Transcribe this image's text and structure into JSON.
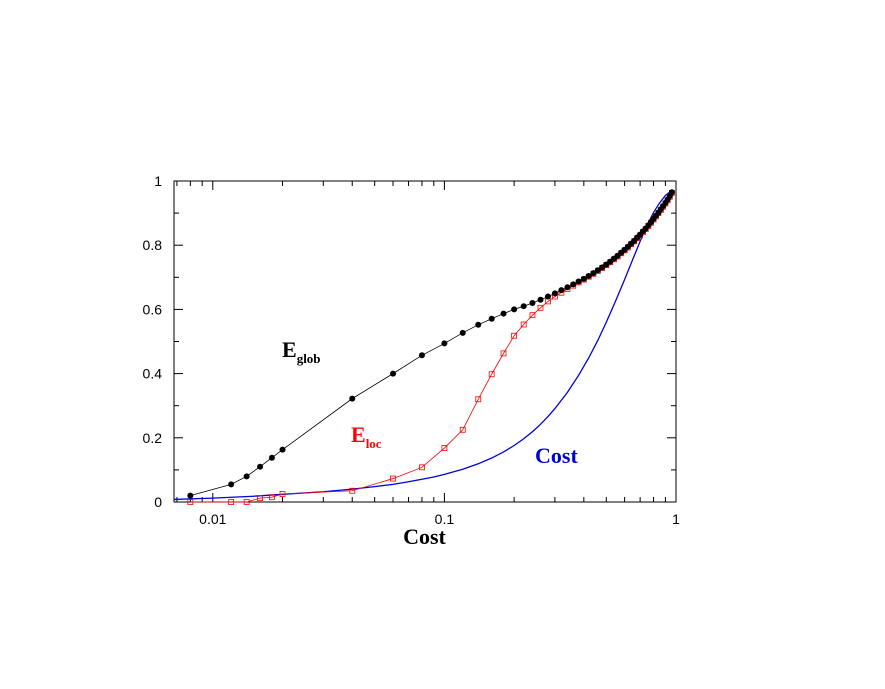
{
  "chart_data": {
    "type": "line",
    "xlabel": "Cost",
    "ylabel": "",
    "xscale": "log",
    "xlim": [
      0.0068,
      1.0
    ],
    "ylim": [
      0,
      1
    ],
    "x_ticks": [
      {
        "value": 0.01,
        "label": "0.01"
      },
      {
        "value": 0.1,
        "label": "0.1"
      },
      {
        "value": 1,
        "label": "1"
      }
    ],
    "y_ticks": [
      {
        "value": 0,
        "label": "0"
      },
      {
        "value": 0.2,
        "label": "0.2"
      },
      {
        "value": 0.4,
        "label": "0.4"
      },
      {
        "value": 0.6,
        "label": "0.6"
      },
      {
        "value": 0.8,
        "label": "0.8"
      },
      {
        "value": 1,
        "label": "1"
      }
    ],
    "grid": false,
    "series": [
      {
        "name": "E_glob",
        "label_main": "E",
        "label_sub": "glob",
        "color": "#000000",
        "marker": "filled-circle",
        "x": [
          0.008,
          0.012,
          0.014,
          0.016,
          0.018,
          0.02,
          0.04,
          0.06,
          0.08,
          0.1,
          0.12,
          0.14,
          0.16,
          0.18,
          0.2,
          0.22,
          0.24,
          0.26,
          0.28,
          0.3,
          0.32,
          0.34,
          0.36,
          0.38,
          0.4,
          0.42,
          0.44,
          0.46,
          0.48,
          0.5,
          0.52,
          0.54,
          0.56,
          0.58,
          0.6,
          0.62,
          0.64,
          0.66,
          0.68,
          0.7,
          0.72,
          0.74,
          0.76,
          0.78,
          0.8,
          0.82,
          0.84,
          0.86,
          0.88,
          0.9,
          0.92,
          0.94,
          0.96
        ],
        "y": [
          0.02,
          0.055,
          0.08,
          0.11,
          0.138,
          0.163,
          0.322,
          0.4,
          0.457,
          0.494,
          0.527,
          0.552,
          0.571,
          0.587,
          0.6,
          0.61,
          0.62,
          0.63,
          0.64,
          0.65,
          0.66,
          0.669,
          0.678,
          0.687,
          0.695,
          0.704,
          0.713,
          0.722,
          0.731,
          0.74,
          0.749,
          0.758,
          0.767,
          0.777,
          0.786,
          0.795,
          0.805,
          0.814,
          0.824,
          0.833,
          0.843,
          0.852,
          0.862,
          0.872,
          0.882,
          0.892,
          0.902,
          0.912,
          0.922,
          0.932,
          0.942,
          0.953,
          0.965
        ]
      },
      {
        "name": "E_loc",
        "label_main": "E",
        "label_sub": "loc",
        "color": "#ff0000",
        "marker": "open-square",
        "x": [
          0.008,
          0.012,
          0.014,
          0.016,
          0.018,
          0.02,
          0.04,
          0.06,
          0.08,
          0.1,
          0.12,
          0.14,
          0.16,
          0.18,
          0.2,
          0.22,
          0.24,
          0.26,
          0.28,
          0.3,
          0.32,
          0.34,
          0.36,
          0.38,
          0.4,
          0.42,
          0.44,
          0.46,
          0.48,
          0.5,
          0.52,
          0.54,
          0.56,
          0.58,
          0.6,
          0.62,
          0.64,
          0.66,
          0.68,
          0.7,
          0.72,
          0.74,
          0.76,
          0.78,
          0.8,
          0.82,
          0.84,
          0.86,
          0.88,
          0.9,
          0.92,
          0.94,
          0.96
        ],
        "y": [
          0.0,
          0.0,
          0.0,
          0.012,
          0.015,
          0.025,
          0.035,
          0.073,
          0.108,
          0.168,
          0.225,
          0.32,
          0.398,
          0.463,
          0.518,
          0.553,
          0.582,
          0.605,
          0.625,
          0.64,
          0.652,
          0.664,
          0.674,
          0.684,
          0.693,
          0.702,
          0.711,
          0.72,
          0.729,
          0.738,
          0.747,
          0.756,
          0.765,
          0.775,
          0.784,
          0.793,
          0.803,
          0.812,
          0.822,
          0.831,
          0.841,
          0.85,
          0.86,
          0.87,
          0.88,
          0.89,
          0.9,
          0.91,
          0.92,
          0.93,
          0.94,
          0.951,
          0.963
        ]
      },
      {
        "name": "Cost",
        "label_main": "Cost",
        "color": "#0000dd",
        "marker": "none",
        "x": [
          0.0068,
          0.01,
          0.015,
          0.02,
          0.03,
          0.04,
          0.05,
          0.06,
          0.07,
          0.08,
          0.09,
          0.1,
          0.12,
          0.14,
          0.16,
          0.18,
          0.2,
          0.22,
          0.24,
          0.26,
          0.28,
          0.3,
          0.34,
          0.38,
          0.42,
          0.46,
          0.5,
          0.55,
          0.6,
          0.65,
          0.7,
          0.75,
          0.8,
          0.85,
          0.9,
          0.95,
          0.96
        ],
        "y": [
          0.008,
          0.012,
          0.018,
          0.024,
          0.032,
          0.04,
          0.048,
          0.055,
          0.063,
          0.071,
          0.078,
          0.086,
          0.102,
          0.119,
          0.137,
          0.156,
          0.176,
          0.197,
          0.219,
          0.242,
          0.266,
          0.291,
          0.342,
          0.395,
          0.449,
          0.504,
          0.56,
          0.628,
          0.693,
          0.755,
          0.812,
          0.862,
          0.902,
          0.932,
          0.955,
          0.968,
          0.97
        ]
      }
    ],
    "annotations": [
      {
        "series": "E_glob",
        "main": "E",
        "sub": "glob",
        "color": "#000000"
      },
      {
        "series": "E_loc",
        "main": "E",
        "sub": "loc",
        "color": "#ff0000"
      },
      {
        "series": "Cost",
        "main": "Cost",
        "color": "#0000dd"
      }
    ]
  }
}
